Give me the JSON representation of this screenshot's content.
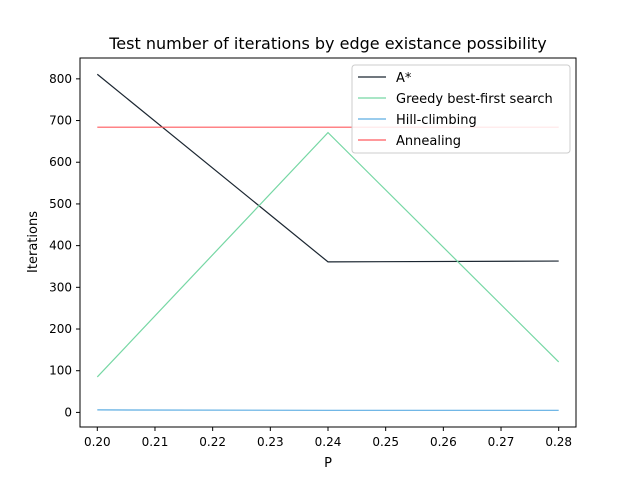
{
  "chart_data": {
    "type": "line",
    "title": "Test number of iterations by edge existance possibility",
    "xlabel": "P",
    "ylabel": "Iterations",
    "x": [
      0.2,
      0.24,
      0.28
    ],
    "xlim": [
      0.197,
      0.283
    ],
    "ylim": [
      -35,
      850
    ],
    "xticks": [
      0.2,
      0.21,
      0.22,
      0.23,
      0.24,
      0.25,
      0.26,
      0.27,
      0.28
    ],
    "xtick_labels": [
      "0.20",
      "0.21",
      "0.22",
      "0.23",
      "0.24",
      "0.25",
      "0.26",
      "0.27",
      "0.28"
    ],
    "yticks": [
      0,
      100,
      200,
      300,
      400,
      500,
      600,
      700,
      800
    ],
    "ytick_labels": [
      "0",
      "100",
      "200",
      "300",
      "400",
      "500",
      "600",
      "700",
      "800"
    ],
    "grid": false,
    "legend_position": "top-right",
    "series": [
      {
        "name": "A*",
        "values": [
          811,
          361,
          363
        ],
        "color": "#1b2631"
      },
      {
        "name": "Greedy best-first search",
        "values": [
          85,
          671,
          121
        ],
        "color": "#76d7a4"
      },
      {
        "name": "Hill-climbing",
        "values": [
          6,
          5,
          5
        ],
        "color": "#5dade2"
      },
      {
        "name": "Annealing",
        "values": [
          684,
          684,
          684
        ],
        "color": "#ff5a5f"
      }
    ]
  }
}
